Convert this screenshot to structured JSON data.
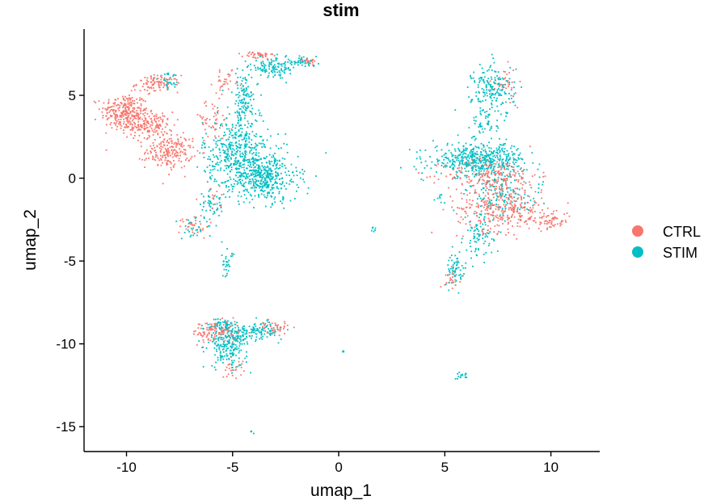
{
  "chart_data": {
    "type": "scatter",
    "title": "stim",
    "xlabel": "umap_1",
    "ylabel": "umap_2",
    "xlim": [
      -12,
      12.3
    ],
    "ylim": [
      -16.5,
      9
    ],
    "x_ticks": [
      -10,
      -5,
      0,
      5,
      10
    ],
    "y_ticks": [
      -15,
      -10,
      -5,
      0,
      5
    ],
    "grid": false,
    "legend_position": "right",
    "series": [
      {
        "name": "CTRL",
        "color": "#F8766D",
        "clusters": [
          {
            "cx": -10.1,
            "cy": 4.0,
            "sx": 0.55,
            "sy": 0.55,
            "n": 260
          },
          {
            "cx": -9.0,
            "cy": 3.2,
            "sx": 0.6,
            "sy": 0.4,
            "n": 160
          },
          {
            "cx": -8.5,
            "cy": 5.7,
            "sx": 0.5,
            "sy": 0.25,
            "n": 90
          },
          {
            "cx": -8.0,
            "cy": 1.6,
            "sx": 0.55,
            "sy": 0.5,
            "n": 200
          },
          {
            "cx": -6.0,
            "cy": 3.5,
            "sx": 0.5,
            "sy": 0.6,
            "n": 50
          },
          {
            "cx": -5.3,
            "cy": 5.8,
            "sx": 0.3,
            "sy": 0.3,
            "n": 30
          },
          {
            "cx": -3.8,
            "cy": 7.4,
            "sx": 0.35,
            "sy": 0.12,
            "n": 40
          },
          {
            "cx": -1.5,
            "cy": 7.1,
            "sx": 0.3,
            "sy": 0.1,
            "n": 25
          },
          {
            "cx": -6.8,
            "cy": -2.9,
            "sx": 0.35,
            "sy": 0.35,
            "n": 30
          },
          {
            "cx": 7.2,
            "cy": 0.2,
            "sx": 1.1,
            "sy": 0.5,
            "n": 200
          },
          {
            "cx": 7.6,
            "cy": -1.8,
            "sx": 1.0,
            "sy": 0.7,
            "n": 300
          },
          {
            "cx": 9.8,
            "cy": -2.5,
            "sx": 0.6,
            "sy": 0.3,
            "n": 80
          },
          {
            "cx": 7.8,
            "cy": 5.7,
            "sx": 0.3,
            "sy": 0.5,
            "n": 35
          },
          {
            "cx": 5.4,
            "cy": -6.0,
            "sx": 0.2,
            "sy": 0.3,
            "n": 25
          },
          {
            "cx": -5.8,
            "cy": -9.3,
            "sx": 0.55,
            "sy": 0.35,
            "n": 110
          },
          {
            "cx": -3.0,
            "cy": -9.0,
            "sx": 0.35,
            "sy": 0.2,
            "n": 40
          },
          {
            "cx": -5.0,
            "cy": -11.4,
            "sx": 0.25,
            "sy": 0.35,
            "n": 25
          },
          {
            "cx": -5.8,
            "cy": -1.2,
            "sx": 0.3,
            "sy": 0.3,
            "n": 15
          }
        ]
      },
      {
        "name": "STIM",
        "color": "#00BFC4",
        "clusters": [
          {
            "cx": -4.8,
            "cy": 1.5,
            "sx": 0.8,
            "sy": 1.0,
            "n": 420
          },
          {
            "cx": -3.5,
            "cy": 0.0,
            "sx": 0.8,
            "sy": 0.7,
            "n": 420
          },
          {
            "cx": -4.5,
            "cy": 4.5,
            "sx": 0.35,
            "sy": 1.0,
            "n": 150
          },
          {
            "cx": -3.0,
            "cy": 6.7,
            "sx": 0.6,
            "sy": 0.3,
            "n": 120
          },
          {
            "cx": -1.8,
            "cy": 7.0,
            "sx": 0.4,
            "sy": 0.12,
            "n": 40
          },
          {
            "cx": -6.0,
            "cy": -1.8,
            "sx": 0.3,
            "sy": 0.6,
            "n": 50
          },
          {
            "cx": -6.9,
            "cy": -3.1,
            "sx": 0.25,
            "sy": 0.3,
            "n": 25
          },
          {
            "cx": -8.0,
            "cy": 5.8,
            "sx": 0.25,
            "sy": 0.25,
            "n": 30
          },
          {
            "cx": -5.3,
            "cy": -5.3,
            "sx": 0.12,
            "sy": 0.35,
            "n": 25
          },
          {
            "cx": 6.6,
            "cy": 1.1,
            "sx": 1.1,
            "sy": 0.5,
            "n": 500
          },
          {
            "cx": 7.3,
            "cy": 5.3,
            "sx": 0.5,
            "sy": 0.8,
            "n": 180
          },
          {
            "cx": 6.9,
            "cy": 3.3,
            "sx": 0.3,
            "sy": 0.5,
            "n": 50
          },
          {
            "cx": 7.8,
            "cy": -1.2,
            "sx": 0.9,
            "sy": 0.6,
            "n": 140
          },
          {
            "cx": 6.6,
            "cy": -3.6,
            "sx": 0.35,
            "sy": 0.6,
            "n": 80
          },
          {
            "cx": 5.5,
            "cy": -5.5,
            "sx": 0.25,
            "sy": 0.5,
            "n": 60
          },
          {
            "cx": -5.2,
            "cy": -10.0,
            "sx": 0.45,
            "sy": 0.7,
            "n": 240
          },
          {
            "cx": -3.8,
            "cy": -9.2,
            "sx": 0.6,
            "sy": 0.25,
            "n": 120
          },
          {
            "cx": -5.5,
            "cy": -8.8,
            "sx": 0.4,
            "sy": 0.2,
            "n": 40
          },
          {
            "cx": 5.8,
            "cy": -11.9,
            "sx": 0.15,
            "sy": 0.12,
            "n": 15
          },
          {
            "cx": 1.6,
            "cy": -3.1,
            "sx": 0.06,
            "sy": 0.05,
            "n": 6
          },
          {
            "cx": 0.2,
            "cy": -10.5,
            "sx": 0.05,
            "sy": 0.04,
            "n": 4
          },
          {
            "cx": -4.1,
            "cy": -15.3,
            "sx": 0.05,
            "sy": 0.04,
            "n": 4
          },
          {
            "cx": 4.8,
            "cy": -1.2,
            "sx": 0.1,
            "sy": 0.15,
            "n": 8
          },
          {
            "cx": -5.0,
            "cy": -4.6,
            "sx": 0.05,
            "sy": 0.1,
            "n": 5
          }
        ]
      }
    ]
  }
}
